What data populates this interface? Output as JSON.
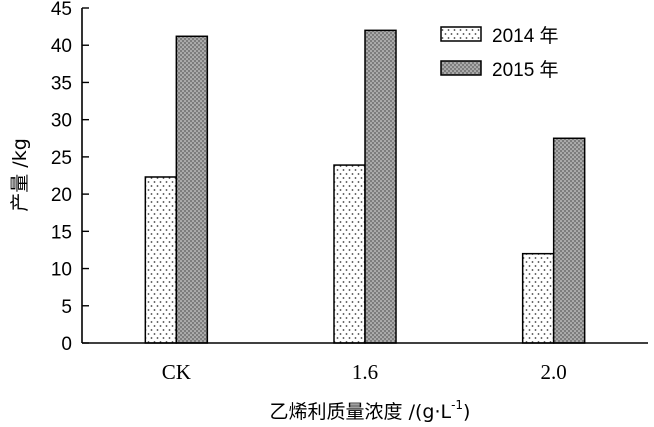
{
  "chart_data": {
    "type": "bar",
    "categories": [
      "CK",
      "1.6",
      "2.0"
    ],
    "series": [
      {
        "name": "2014 年",
        "values": [
          22.3,
          23.9,
          12.0
        ],
        "pattern": "sparse-dots"
      },
      {
        "name": "2015 年",
        "values": [
          41.2,
          42.0,
          27.5
        ],
        "pattern": "dense-dots"
      }
    ],
    "title": "",
    "ylabel": "产量 /kg",
    "xlabel_main": "乙烯利质量浓度 /(g·L",
    "xlabel_sup": "-1",
    "xlabel_end": ")",
    "ylim": [
      0,
      45
    ],
    "yticks": [
      0,
      5,
      10,
      15,
      20,
      25,
      30,
      35,
      40,
      45
    ],
    "grid": false,
    "legend_position": "top-right",
    "colors": {
      "axis": "#000000",
      "bar_fill": "#ffffff",
      "dense_fill": "#8a8a8a",
      "dot_light": "#555555",
      "dot_dense": "#ffffff"
    }
  }
}
